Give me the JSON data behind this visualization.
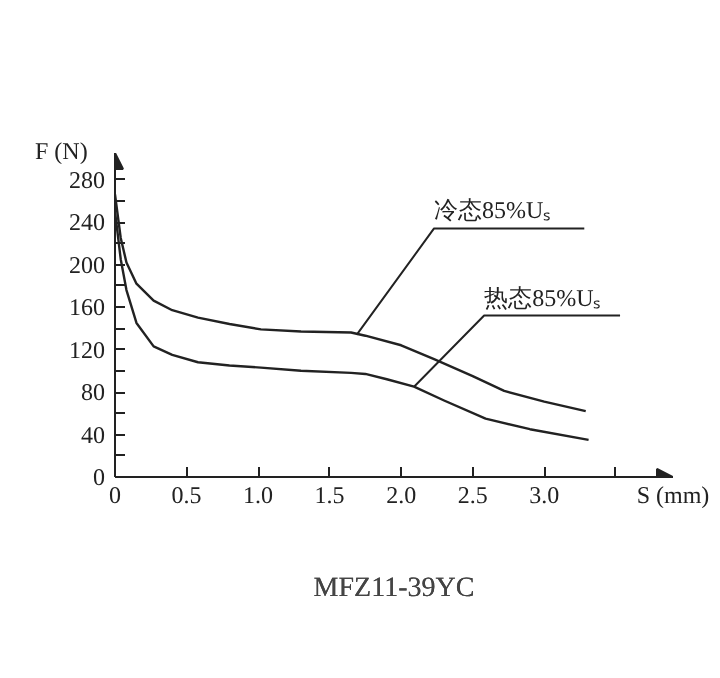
{
  "chart_data": {
    "type": "line",
    "title": "MFZ11-39YC",
    "xlabel": "S (mm)",
    "ylabel": "F (N)",
    "xlim": [
      0,
      3.9
    ],
    "ylim": [
      0,
      305
    ],
    "xticks": [
      0,
      {
        "value": 0.5,
        "label": "0.5"
      },
      {
        "value": 1,
        "label": "1.0"
      },
      1.5,
      {
        "value": 2,
        "label": "2.0"
      },
      2.5,
      {
        "value": 3,
        "label": "3.0"
      },
      {
        "value": 3.5,
        "label": null
      }
    ],
    "yticks": [
      0,
      {
        "value": 20,
        "label": null
      },
      40,
      {
        "value": 60,
        "label": null
      },
      80,
      {
        "value": 100,
        "label": null
      },
      120,
      {
        "value": 140,
        "label": null
      },
      160,
      {
        "value": 180,
        "label": null
      },
      200,
      {
        "value": 220,
        "label": null
      },
      240,
      {
        "value": 260,
        "label": null
      },
      280
    ],
    "grid": false,
    "marker": "none",
    "line_style": "solid",
    "series": [
      {
        "color": "#222222",
        "x": [
          0,
          0.04,
          0.08,
          0.15,
          0.27,
          0.4,
          0.58,
          0.8,
          1.02,
          1.3,
          1.65,
          1.75,
          2.0,
          2.23,
          2.5,
          2.72,
          3.0,
          3.29
        ],
        "values": [
          266,
          225,
          202,
          182,
          166,
          157,
          150,
          144,
          139,
          137,
          136,
          133,
          124,
          111,
          95,
          81,
          71,
          62
        ]
      },
      {
        "color": "#222222",
        "x": [
          0,
          0.04,
          0.08,
          0.15,
          0.27,
          0.4,
          0.58,
          0.8,
          1.02,
          1.3,
          1.65,
          1.75,
          1.9,
          2.09,
          2.3,
          2.59,
          2.9,
          3.31
        ],
        "values": [
          250,
          205,
          176,
          145,
          123,
          115,
          108,
          105,
          103,
          100,
          98,
          97,
          92,
          85,
          72,
          55,
          45,
          35
        ]
      }
    ],
    "annotations": [
      {
        "text": "冷态85%Uₛ",
        "x": 1.69,
        "y": 134
      },
      {
        "text": "热态85%Uₛ",
        "x": 2.09,
        "y": 85
      }
    ]
  }
}
